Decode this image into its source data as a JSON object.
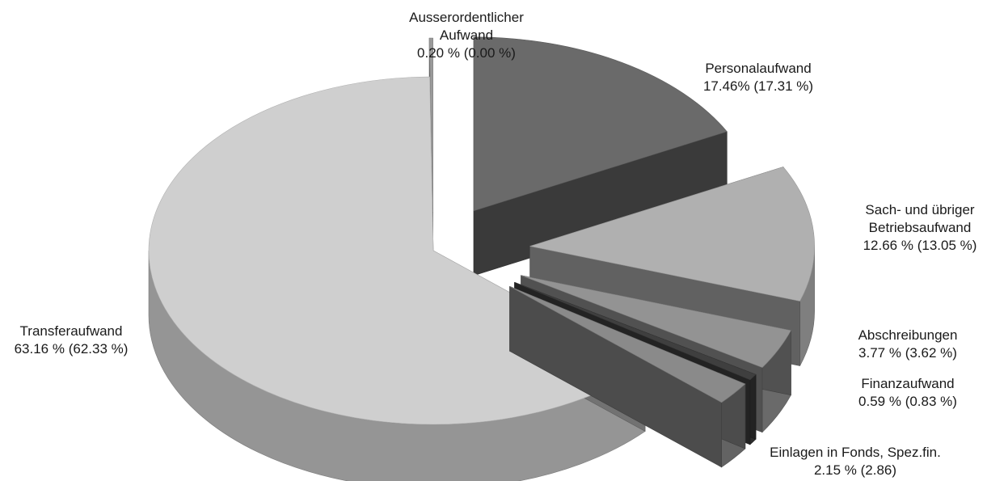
{
  "chart_data": {
    "type": "pie",
    "title": "",
    "style": "3d-exploded",
    "slices": [
      {
        "name": "Personalaufwand",
        "value": 17.46,
        "comparison_value": 17.31,
        "label_lines": [
          "Personalaufwand",
          "17.46% (17.31 %)"
        ],
        "color": "#6a6a6a"
      },
      {
        "name": "Sach- und übriger Betriebsaufwand",
        "value": 12.66,
        "comparison_value": 13.05,
        "label_lines": [
          "Sach- und übriger",
          "Betriebsaufwand",
          "12.66 % (13.05 %)"
        ],
        "color": "#b0b0b0"
      },
      {
        "name": "Abschreibungen",
        "value": 3.77,
        "comparison_value": 3.62,
        "label_lines": [
          "Abschreibungen",
          "3.77 % (3.62 %)"
        ],
        "color": "#939393"
      },
      {
        "name": "Finanzaufwand",
        "value": 0.59,
        "comparison_value": 0.83,
        "label_lines": [
          "Finanzaufwand",
          "0.59 % (0.83 %)"
        ],
        "color": "#3f3f3f"
      },
      {
        "name": "Einlagen in Fonds, Spez.fin.",
        "value": 2.15,
        "comparison_value": 2.86,
        "label_lines": [
          "Einlagen in Fonds, Spez.fin.",
          "2.15 % (2.86)"
        ],
        "color": "#8a8a8a"
      },
      {
        "name": "Transferaufwand",
        "value": 63.16,
        "comparison_value": 62.33,
        "label_lines": [
          "Transferaufwand",
          "63.16 % (62.33 %)"
        ],
        "color": "#cfcfcf"
      },
      {
        "name": "Ausserordentlicher Aufwand",
        "value": 0.2,
        "comparison_value": 0.0,
        "label_lines": [
          "Ausserordentlicher",
          "Aufwand",
          "0.20 % (0.00 %)"
        ],
        "color": "#9a9a9a"
      }
    ]
  }
}
